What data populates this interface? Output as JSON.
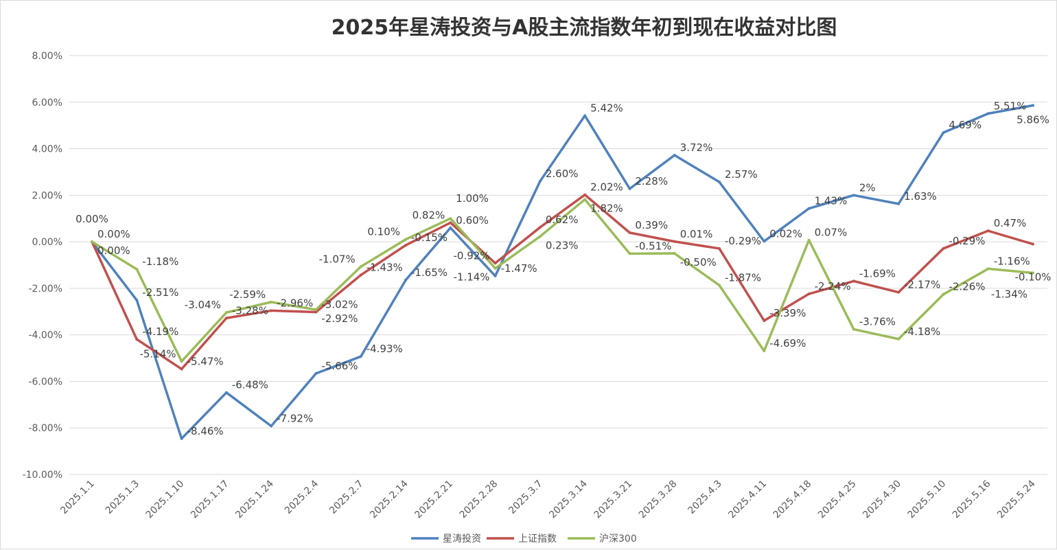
{
  "chart_data": {
    "type": "line",
    "title": "2025年星涛投资与A股主流指数年初到现在收益对比图",
    "xlabel": "",
    "ylabel": "",
    "ylim": [
      -10,
      8
    ],
    "yticks": [
      "8.00%",
      "6.00%",
      "4.00%",
      "2.00%",
      "0.00%",
      "-2.00%",
      "-4.00%",
      "-6.00%",
      "-8.00%",
      "-10.00%"
    ],
    "grid": true,
    "legend_position": "bottom",
    "categories": [
      "2025.1.1",
      "2025.1.3",
      "2025.1.10",
      "2025.1.17",
      "2025.1.24",
      "2025.2.4",
      "2025.2.7",
      "2025.2.14",
      "2025.2.21",
      "2025.2.28",
      "2025.3.7",
      "2025.3.14",
      "2025.3.21",
      "2025.3.28",
      "2025.4.3",
      "2025.4.11",
      "2025.4.18",
      "2025.4.25",
      "2025.4.30",
      "2025.5.10",
      "2025.5.16",
      "2025.5.24"
    ],
    "series": [
      {
        "name": "星涛投资",
        "color": "#4f81bd",
        "values": [
          0,
          -2.51,
          -8.46,
          -6.48,
          -7.92,
          -5.66,
          -4.93,
          -1.65,
          0.6,
          -1.47,
          2.6,
          5.42,
          2.28,
          3.72,
          2.57,
          0.02,
          1.43,
          2,
          1.63,
          4.69,
          5.51,
          5.86
        ],
        "labels": [
          "0.00%",
          "-2.51%",
          "-8.46%",
          "-6.48%",
          "-7.92%",
          "-5.66%",
          "-4.93%",
          "-1.65%",
          "0.60%",
          "-1.47%",
          "2.60%",
          "5.42%",
          "2.28%",
          "3.72%",
          "2.57%",
          "0.02%",
          "1.43%",
          "2%",
          "1.63%",
          "4.69%",
          "5.51%",
          "5.86%"
        ]
      },
      {
        "name": "上证指数",
        "color": "#c0504d",
        "values": [
          0,
          -4.19,
          -5.47,
          -3.28,
          -2.96,
          -3.02,
          -1.43,
          -0.15,
          0.82,
          -0.92,
          0.62,
          2.02,
          0.39,
          0.01,
          -0.29,
          -3.39,
          -2.24,
          -1.69,
          -2.17,
          -0.29,
          0.47,
          -0.1
        ],
        "labels": [
          "0.00%",
          "-4.19%",
          "-5.47%",
          "-3.28%",
          "-2.96%",
          "-3.02%",
          "-1.43%",
          "-0.15%",
          "0.82%",
          "-0.92%",
          "0.62%",
          "2.02%",
          "0.39%",
          "0.01%",
          "-0.29%",
          "-3.39%",
          "-2.24%",
          "-1.69%",
          "-2.17%",
          "-0.29%",
          "0.47%",
          "-0.10%"
        ]
      },
      {
        "name": "沪深300",
        "color": "#9bbb59",
        "values": [
          0,
          -1.18,
          -5.14,
          -3.04,
          -2.59,
          -2.92,
          -1.07,
          0.1,
          1.0,
          -1.14,
          0.23,
          1.82,
          -0.51,
          -0.5,
          -1.87,
          -4.69,
          0.07,
          -3.76,
          -4.18,
          -2.26,
          -1.16,
          -1.34
        ],
        "labels": [
          "0.00%",
          "-1.18%",
          "-5.14%",
          "-3.04%",
          "-2.59%",
          "-2.92%",
          "-1.07%",
          "0.10%",
          "1.00%",
          "-1.14%",
          "0.23%",
          "1.82%",
          "-0.51%",
          "-0.50%",
          "-1.87%",
          "-4.69%",
          "0.07%",
          "-3.76%",
          "-4.18%",
          "-2.26%",
          "-1.16%",
          "-1.34%"
        ]
      }
    ]
  }
}
